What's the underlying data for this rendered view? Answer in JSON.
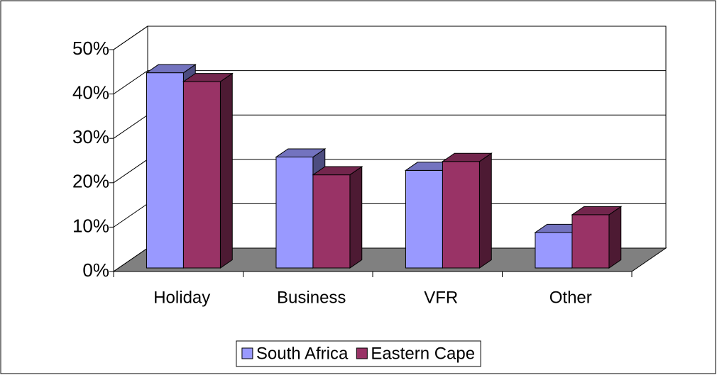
{
  "chart_data": {
    "type": "bar3d",
    "categories": [
      "Holiday",
      "Business",
      "VFR",
      "Other"
    ],
    "series": [
      {
        "name": "South Africa",
        "color": "#9999ff",
        "values": [
          44,
          25,
          22,
          8
        ]
      },
      {
        "name": "Eastern Cape",
        "color": "#993366",
        "values": [
          42,
          21,
          24,
          12
        ]
      }
    ],
    "ylim": [
      0,
      50
    ],
    "yticks": [
      {
        "value": 0,
        "label": "0%"
      },
      {
        "value": 10,
        "label": "10%"
      },
      {
        "value": 20,
        "label": "20%"
      },
      {
        "value": 30,
        "label": "30%"
      },
      {
        "value": 40,
        "label": "40%"
      },
      {
        "value": 50,
        "label": "50%"
      }
    ],
    "grid": true,
    "legend": "bottom"
  }
}
